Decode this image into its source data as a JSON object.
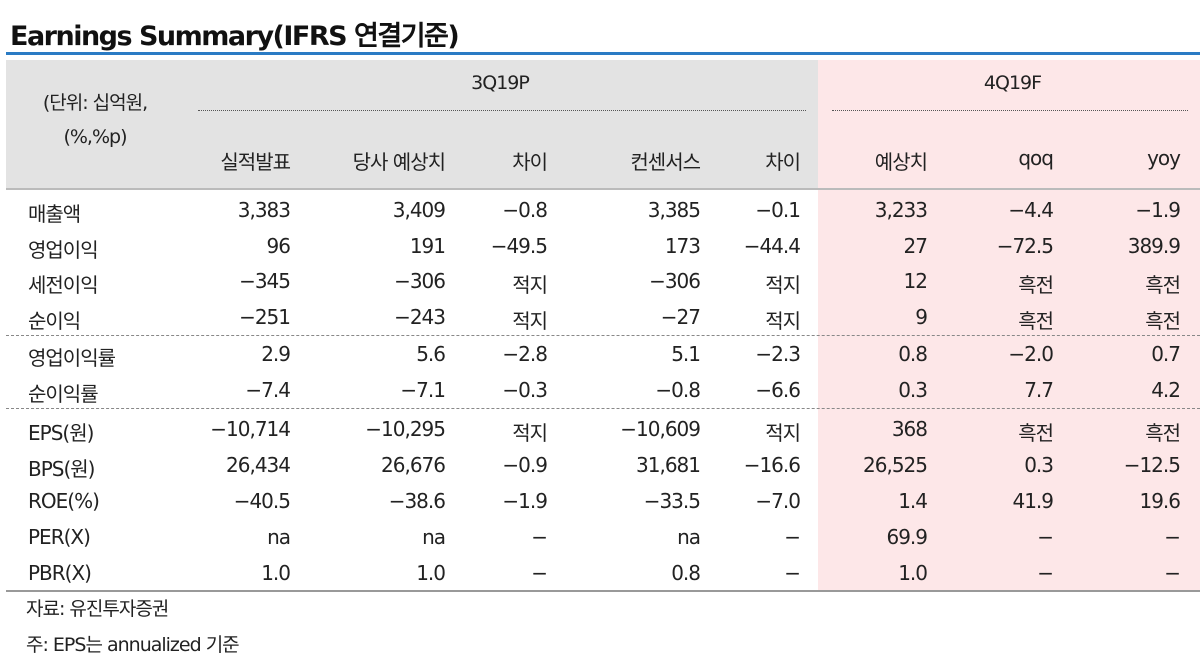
{
  "title": "Earnings Summary(IFRS 연결기준)",
  "unit": [
    "(단위: 십억원,",
    "(%,%p)"
  ],
  "groups": {
    "g1": "3Q19P",
    "g2": "4Q19F"
  },
  "columns": [
    "실적발표",
    "당사 예상치",
    "차이",
    "컨센서스",
    "차이",
    "예상치",
    "qoq",
    "yoy"
  ],
  "rows": [
    {
      "label": "매출액",
      "values": [
        "3,383",
        "3,409",
        "−0.8",
        "3,385",
        "−0.1",
        "3,233",
        "−4.4",
        "−1.9"
      ]
    },
    {
      "label": "영업이익",
      "values": [
        "96",
        "191",
        "−49.5",
        "173",
        "−44.4",
        "27",
        "−72.5",
        "389.9"
      ]
    },
    {
      "label": "세전이익",
      "values": [
        "−345",
        "−306",
        "적지",
        "−306",
        "적지",
        "12",
        "흑전",
        "흑전"
      ]
    },
    {
      "label": "순이익",
      "values": [
        "−251",
        "−243",
        "적지",
        "−27",
        "적지",
        "9",
        "흑전",
        "흑전"
      ]
    },
    {
      "label": "영업이익률",
      "values": [
        "2.9",
        "5.6",
        "−2.8",
        "5.1",
        "−2.3",
        "0.8",
        "−2.0",
        "0.7"
      ]
    },
    {
      "label": "순이익률",
      "values": [
        "−7.4",
        "−7.1",
        "−0.3",
        "−0.8",
        "−6.6",
        "0.3",
        "7.7",
        "4.2"
      ]
    },
    {
      "label": "EPS(원)",
      "values": [
        "−10,714",
        "−10,295",
        "적지",
        "−10,609",
        "적지",
        "368",
        "흑전",
        "흑전"
      ]
    },
    {
      "label": "BPS(원)",
      "values": [
        "26,434",
        "26,676",
        "−0.9",
        "31,681",
        "−16.6",
        "26,525",
        "0.3",
        "−12.5"
      ]
    },
    {
      "label": "ROE(%)",
      "values": [
        "−40.5",
        "−38.6",
        "−1.9",
        "−33.5",
        "−7.0",
        "1.4",
        "41.9",
        "19.6"
      ]
    },
    {
      "label": "PER(X)",
      "values": [
        "na",
        "na",
        "−",
        "na",
        "−",
        "69.9",
        "−",
        "−"
      ]
    },
    {
      "label": "PBR(X)",
      "values": [
        "1.0",
        "1.0",
        "−",
        "0.8",
        "−",
        "1.0",
        "−",
        "−"
      ]
    }
  ],
  "footnotes": [
    "자료: 유진투자증권",
    "주: EPS는 annualized 기준"
  ]
}
